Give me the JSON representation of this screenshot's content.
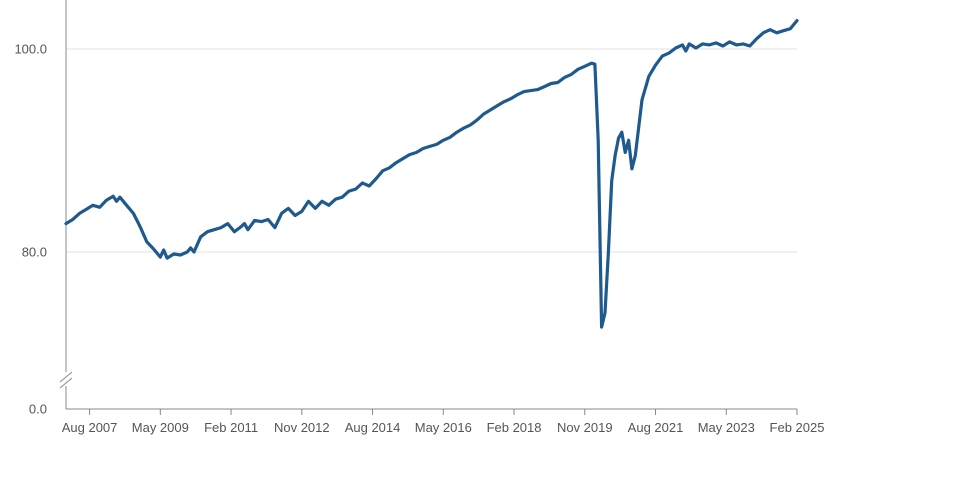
{
  "chart_data": {
    "type": "line",
    "title": "",
    "xlabel": "",
    "ylabel": "",
    "axis_break": true,
    "grid": true,
    "legend": "none",
    "series_color": "#1f5a8e",
    "x_range": [
      "2007-01",
      "2025-02"
    ],
    "y_ticks": [
      {
        "value": 0,
        "label": "0.0"
      },
      {
        "value": 80,
        "label": "80.0"
      },
      {
        "value": 100,
        "label": "100.0"
      }
    ],
    "x_ticks": [
      {
        "date": "2007-08",
        "label": "Aug 2007"
      },
      {
        "date": "2009-05",
        "label": "May 2009"
      },
      {
        "date": "2011-02",
        "label": "Feb 2011"
      },
      {
        "date": "2012-11",
        "label": "Nov 2012"
      },
      {
        "date": "2014-08",
        "label": "Aug 2014"
      },
      {
        "date": "2016-05",
        "label": "May 2016"
      },
      {
        "date": "2018-02",
        "label": "Feb 2018"
      },
      {
        "date": "2019-11",
        "label": "Nov 2019"
      },
      {
        "date": "2021-08",
        "label": "Aug 2021"
      },
      {
        "date": "2023-05",
        "label": "May 2023"
      },
      {
        "date": "2025-02",
        "label": "Feb 2025"
      }
    ],
    "series": [
      {
        "points": [
          [
            "2007-01",
            82.8
          ],
          [
            "2007-03",
            83.2
          ],
          [
            "2007-05",
            83.8
          ],
          [
            "2007-07",
            84.2
          ],
          [
            "2007-09",
            84.6
          ],
          [
            "2007-11",
            84.4
          ],
          [
            "2008-01",
            85.1
          ],
          [
            "2008-03",
            85.5
          ],
          [
            "2008-04",
            85.0
          ],
          [
            "2008-05",
            85.4
          ],
          [
            "2008-07",
            84.6
          ],
          [
            "2008-09",
            83.8
          ],
          [
            "2008-11",
            82.5
          ],
          [
            "2009-01",
            81.0
          ],
          [
            "2009-03",
            80.3
          ],
          [
            "2009-05",
            79.5
          ],
          [
            "2009-06",
            80.2
          ],
          [
            "2009-07",
            79.4
          ],
          [
            "2009-09",
            79.8
          ],
          [
            "2009-11",
            79.7
          ],
          [
            "2010-01",
            80.0
          ],
          [
            "2010-02",
            80.4
          ],
          [
            "2010-03",
            80.0
          ],
          [
            "2010-05",
            81.5
          ],
          [
            "2010-07",
            82.0
          ],
          [
            "2010-09",
            82.2
          ],
          [
            "2010-11",
            82.4
          ],
          [
            "2011-01",
            82.8
          ],
          [
            "2011-03",
            82.0
          ],
          [
            "2011-05",
            82.5
          ],
          [
            "2011-06",
            82.8
          ],
          [
            "2011-07",
            82.2
          ],
          [
            "2011-09",
            83.1
          ],
          [
            "2011-11",
            83.0
          ],
          [
            "2012-01",
            83.2
          ],
          [
            "2012-03",
            82.4
          ],
          [
            "2012-05",
            83.8
          ],
          [
            "2012-07",
            84.3
          ],
          [
            "2012-09",
            83.6
          ],
          [
            "2012-11",
            84.0
          ],
          [
            "2013-01",
            85.0
          ],
          [
            "2013-03",
            84.3
          ],
          [
            "2013-05",
            85.0
          ],
          [
            "2013-07",
            84.6
          ],
          [
            "2013-09",
            85.2
          ],
          [
            "2013-11",
            85.4
          ],
          [
            "2014-01",
            86.0
          ],
          [
            "2014-03",
            86.2
          ],
          [
            "2014-05",
            86.8
          ],
          [
            "2014-07",
            86.5
          ],
          [
            "2014-09",
            87.2
          ],
          [
            "2014-11",
            88.0
          ],
          [
            "2015-01",
            88.3
          ],
          [
            "2015-03",
            88.8
          ],
          [
            "2015-05",
            89.2
          ],
          [
            "2015-07",
            89.6
          ],
          [
            "2015-09",
            89.8
          ],
          [
            "2015-11",
            90.2
          ],
          [
            "2016-01",
            90.4
          ],
          [
            "2016-03",
            90.6
          ],
          [
            "2016-05",
            91.0
          ],
          [
            "2016-07",
            91.3
          ],
          [
            "2016-09",
            91.8
          ],
          [
            "2016-11",
            92.2
          ],
          [
            "2017-01",
            92.5
          ],
          [
            "2017-03",
            93.0
          ],
          [
            "2017-05",
            93.6
          ],
          [
            "2017-07",
            94.0
          ],
          [
            "2017-09",
            94.4
          ],
          [
            "2017-11",
            94.8
          ],
          [
            "2018-01",
            95.1
          ],
          [
            "2018-03",
            95.5
          ],
          [
            "2018-05",
            95.8
          ],
          [
            "2018-07",
            95.9
          ],
          [
            "2018-09",
            96.0
          ],
          [
            "2018-11",
            96.3
          ],
          [
            "2019-01",
            96.6
          ],
          [
            "2019-03",
            96.7
          ],
          [
            "2019-05",
            97.2
          ],
          [
            "2019-07",
            97.5
          ],
          [
            "2019-09",
            98.0
          ],
          [
            "2019-11",
            98.3
          ],
          [
            "2020-01",
            98.6
          ],
          [
            "2020-02",
            98.5
          ],
          [
            "2020-03",
            91.0
          ],
          [
            "2020-04",
            72.6
          ],
          [
            "2020-05",
            74.0
          ],
          [
            "2020-06",
            80.0
          ],
          [
            "2020-07",
            87.0
          ],
          [
            "2020-08",
            89.5
          ],
          [
            "2020-09",
            91.2
          ],
          [
            "2020-10",
            91.8
          ],
          [
            "2020-11",
            89.8
          ],
          [
            "2020-12",
            91.0
          ],
          [
            "2021-01",
            88.2
          ],
          [
            "2021-02",
            89.5
          ],
          [
            "2021-04",
            95.0
          ],
          [
            "2021-06",
            97.3
          ],
          [
            "2021-08",
            98.4
          ],
          [
            "2021-10",
            99.3
          ],
          [
            "2021-12",
            99.6
          ],
          [
            "2022-02",
            100.1
          ],
          [
            "2022-04",
            100.4
          ],
          [
            "2022-05",
            99.8
          ],
          [
            "2022-06",
            100.5
          ],
          [
            "2022-08",
            100.1
          ],
          [
            "2022-10",
            100.5
          ],
          [
            "2022-12",
            100.4
          ],
          [
            "2023-02",
            100.6
          ],
          [
            "2023-04",
            100.3
          ],
          [
            "2023-06",
            100.7
          ],
          [
            "2023-08",
            100.4
          ],
          [
            "2023-10",
            100.5
          ],
          [
            "2023-12",
            100.3
          ],
          [
            "2024-02",
            101.0
          ],
          [
            "2024-04",
            101.6
          ],
          [
            "2024-06",
            101.9
          ],
          [
            "2024-08",
            101.6
          ],
          [
            "2024-10",
            101.8
          ],
          [
            "2024-12",
            102.0
          ],
          [
            "2025-02",
            102.8
          ]
        ]
      }
    ]
  }
}
